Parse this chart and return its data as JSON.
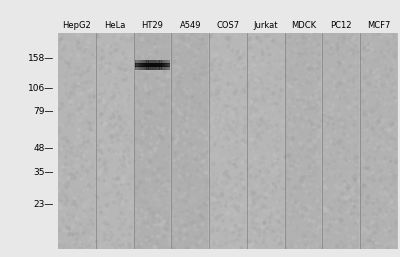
{
  "cell_lines": [
    "HepG2",
    "HeLa",
    "HT29",
    "A549",
    "COS7",
    "Jurkat",
    "MDCK",
    "PC12",
    "MCF7"
  ],
  "mw_markers": [
    158,
    106,
    79,
    48,
    35,
    23
  ],
  "band_lane": 2,
  "bg_color": "#b8b8b8",
  "lane_bg": "#b2b2b2",
  "lane_sep_color": "#787878",
  "band_color": "#0a0a0a",
  "outer_bg": "#e8e8e8",
  "text_color": "#000000",
  "fig_width": 4.0,
  "fig_height": 2.57,
  "label_fontsize": 6.0,
  "mw_fontsize": 6.5,
  "log_min_factor": 0.55,
  "log_max_factor": 1.4
}
